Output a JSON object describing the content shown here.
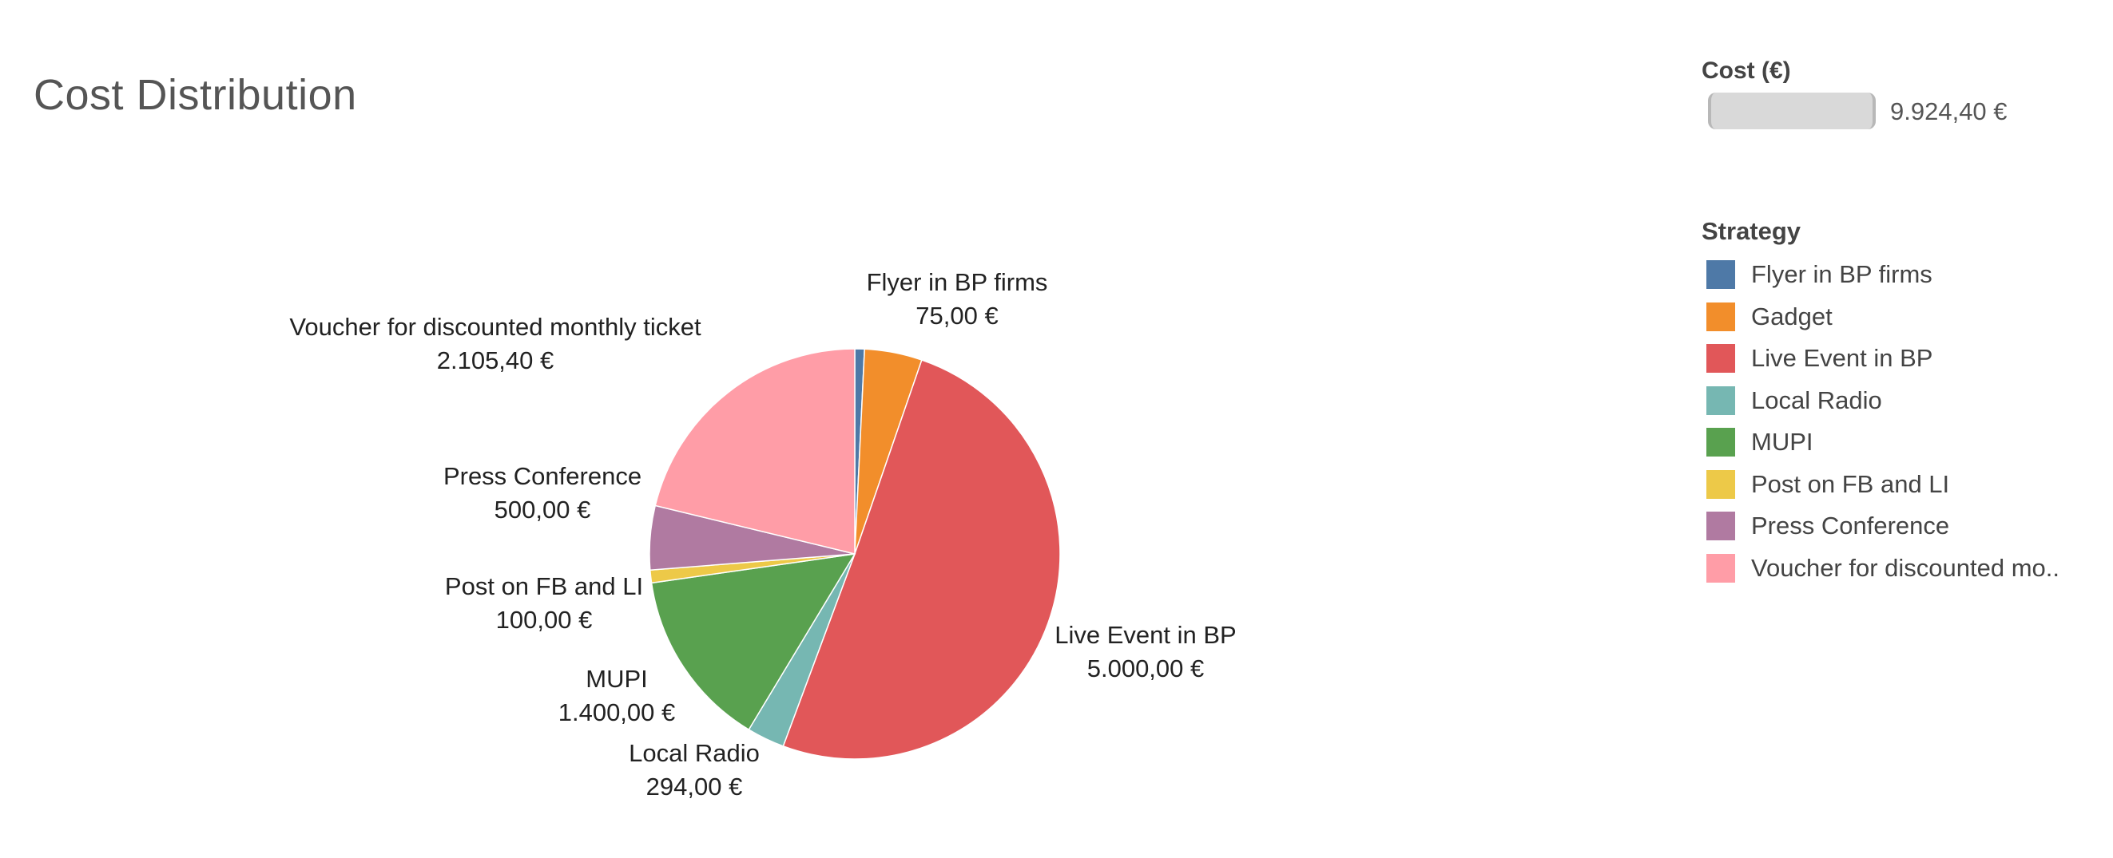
{
  "title": "Cost Distribution",
  "size_legend": {
    "title": "Cost (€)",
    "value": "9.924,40 €"
  },
  "legend": {
    "title": "Strategy",
    "items": [
      {
        "label": "Flyer in BP firms",
        "color": "#4e79a7"
      },
      {
        "label": "Gadget",
        "color": "#f28e2b"
      },
      {
        "label": "Live Event in BP",
        "color": "#e15759"
      },
      {
        "label": "Local Radio",
        "color": "#76b7b2"
      },
      {
        "label": "MUPI",
        "color": "#59a14f"
      },
      {
        "label": "Post on FB and LI",
        "color": "#edc948"
      },
      {
        "label": "Press Conference",
        "color": "#b07aa1"
      },
      {
        "label": "Voucher for discounted mo.."
      }
    ]
  },
  "chart_data": {
    "type": "pie",
    "title": "Cost Distribution",
    "total": 9924.4,
    "slices": [
      {
        "name": "Flyer in BP firms",
        "value": 75.0,
        "label_value": "75,00 €",
        "color": "#4e79a7",
        "labeled": true
      },
      {
        "name": "Gadget",
        "value": 450.0,
        "label_value": "",
        "color": "#f28e2b",
        "labeled": false
      },
      {
        "name": "Live Event in BP",
        "value": 5000.0,
        "label_value": "5.000,00 €",
        "color": "#e15759",
        "labeled": true
      },
      {
        "name": "Local Radio",
        "value": 294.0,
        "label_value": "294,00 €",
        "color": "#76b7b2",
        "labeled": true
      },
      {
        "name": "MUPI",
        "value": 1400.0,
        "label_value": "1.400,00 €",
        "color": "#59a14f",
        "labeled": true
      },
      {
        "name": "Post on FB and LI",
        "value": 100.0,
        "label_value": "100,00 €",
        "color": "#edc948",
        "labeled": true
      },
      {
        "name": "Press Conference",
        "value": 500.0,
        "label_value": "500,00 €",
        "color": "#b07aa1",
        "labeled": true
      },
      {
        "name": "Voucher for discounted monthly ticket",
        "value": 2105.4,
        "label_value": "2.105,40 €",
        "color": "#ff9da7",
        "labeled": true
      }
    ]
  }
}
